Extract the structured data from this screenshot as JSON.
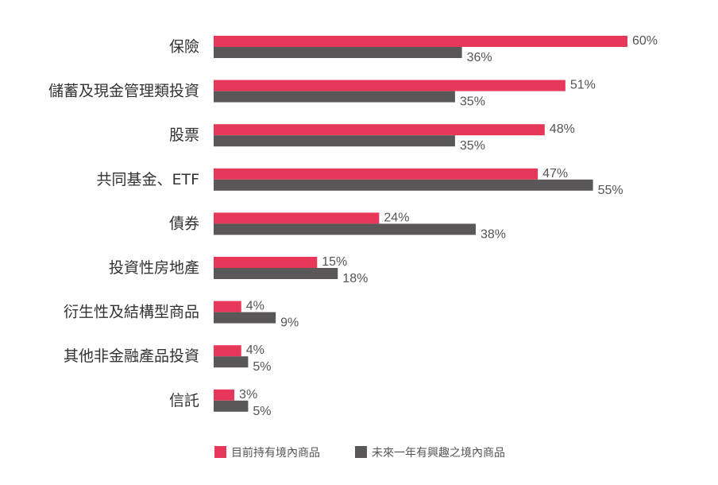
{
  "chart_data": {
    "type": "bar",
    "orientation": "horizontal",
    "categories": [
      "保險",
      "儲蓄及現金管理類投資",
      "股票",
      "共同基金、ETF",
      "債券",
      "投資性房地產",
      "衍生性及結構型商品",
      "其他非金融產品投資",
      "信託"
    ],
    "series": [
      {
        "name": "目前持有境內商品",
        "color": "#e8385a",
        "values": [
          60,
          51,
          48,
          47,
          24,
          15,
          4,
          4,
          3
        ]
      },
      {
        "name": "未來一年有興趣之境內商品",
        "color": "#595757",
        "values": [
          36,
          35,
          35,
          55,
          38,
          18,
          9,
          5,
          5
        ]
      }
    ],
    "value_suffix": "%",
    "xlim": [
      0,
      60
    ],
    "grid": false,
    "legend_position": "bottom"
  }
}
